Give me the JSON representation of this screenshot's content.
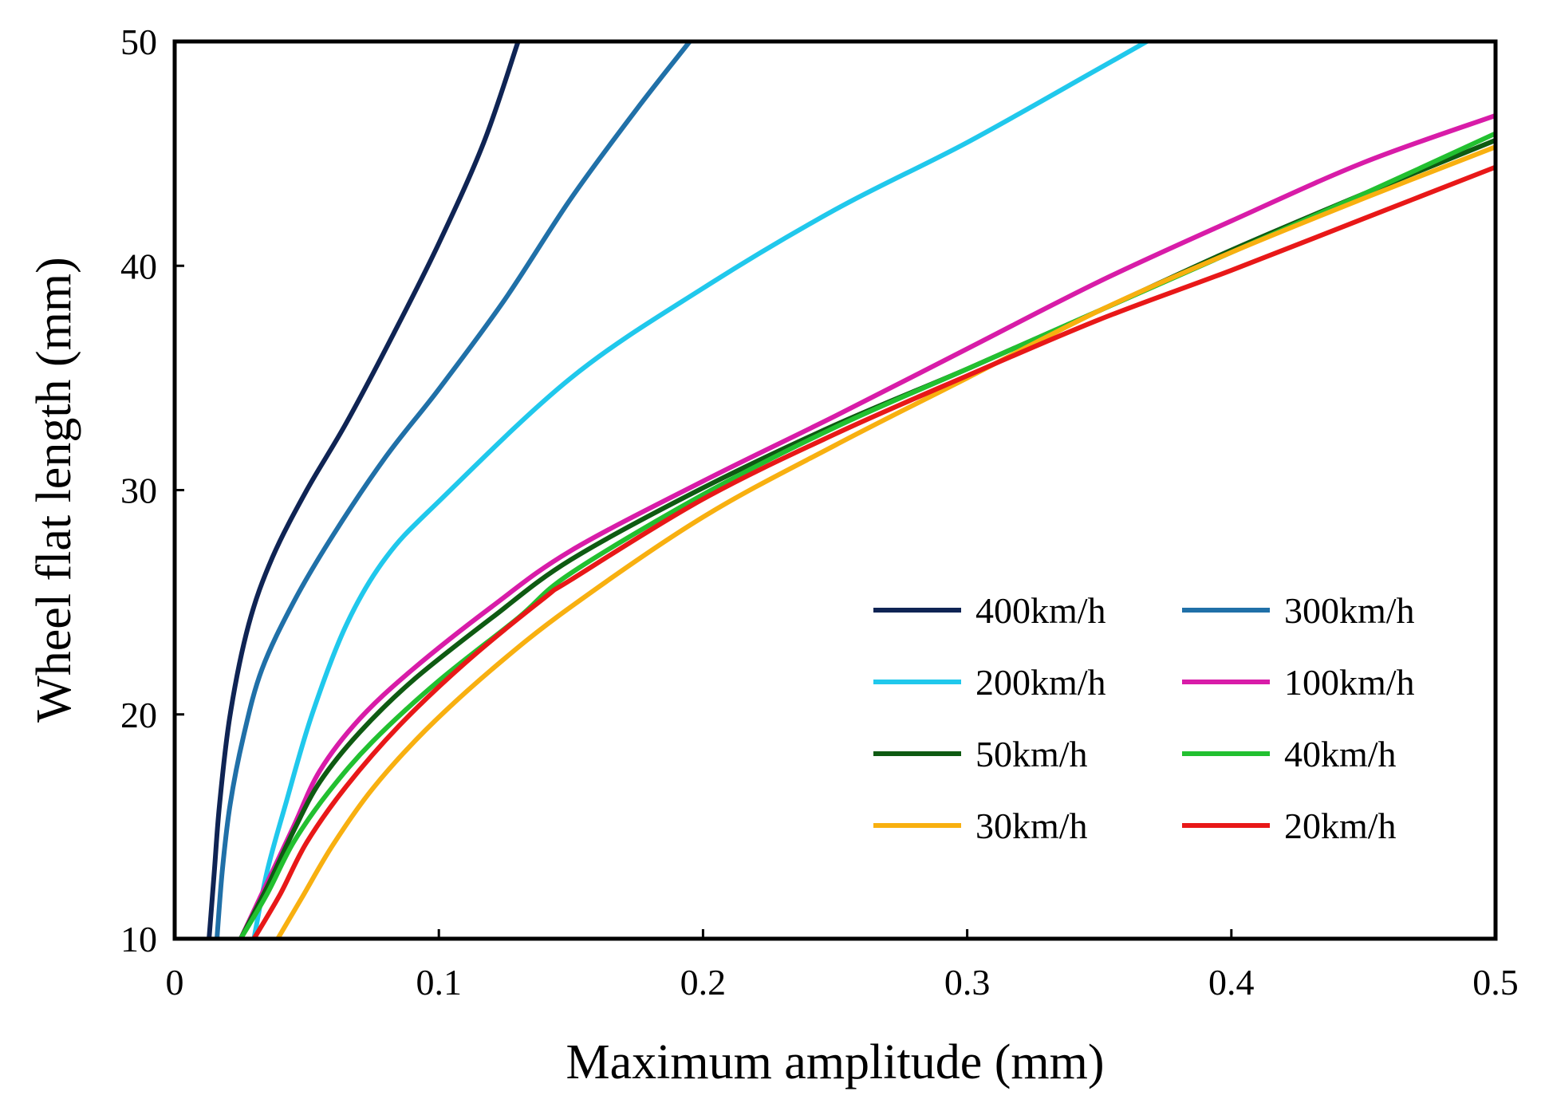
{
  "chart_data": {
    "type": "line",
    "title": "",
    "xlabel": "Maximum amplitude (mm)",
    "ylabel": "Wheel flat length (mm)",
    "xlim": [
      0,
      0.5
    ],
    "ylim": [
      10,
      50
    ],
    "xticks": [
      0,
      0.1,
      0.2,
      0.3,
      0.4,
      0.5
    ],
    "xtick_labels": [
      "0",
      "0.1",
      "0.2",
      "0.3",
      "0.4",
      "0.5"
    ],
    "yticks": [
      10,
      20,
      30,
      40,
      50
    ],
    "ytick_labels": [
      "10",
      "20",
      "30",
      "40",
      "50"
    ],
    "grid": false,
    "legend_position": "lower-right",
    "legend_columns": 2,
    "series": [
      {
        "name": "400km/h",
        "color": "#0f2454",
        "points": [
          [
            0.013,
            10
          ],
          [
            0.015,
            13
          ],
          [
            0.017,
            16
          ],
          [
            0.021,
            20
          ],
          [
            0.028,
            24
          ],
          [
            0.037,
            27
          ],
          [
            0.05,
            30
          ],
          [
            0.065,
            33
          ],
          [
            0.083,
            37
          ],
          [
            0.1,
            41
          ],
          [
            0.117,
            45.5
          ],
          [
            0.13,
            50
          ]
        ]
      },
      {
        "name": "300km/h",
        "color": "#2070a8",
        "points": [
          [
            0.016,
            10
          ],
          [
            0.018,
            13
          ],
          [
            0.021,
            16
          ],
          [
            0.026,
            19
          ],
          [
            0.033,
            22
          ],
          [
            0.045,
            25
          ],
          [
            0.06,
            28
          ],
          [
            0.08,
            31.5
          ],
          [
            0.1,
            34.5
          ],
          [
            0.125,
            38.5
          ],
          [
            0.15,
            43
          ],
          [
            0.175,
            47
          ],
          [
            0.195,
            50
          ]
        ]
      },
      {
        "name": "200km/h",
        "color": "#20c8ec",
        "points": [
          [
            0.03,
            10
          ],
          [
            0.035,
            13
          ],
          [
            0.042,
            16
          ],
          [
            0.052,
            20
          ],
          [
            0.065,
            24
          ],
          [
            0.08,
            27
          ],
          [
            0.1,
            29.5
          ],
          [
            0.15,
            35
          ],
          [
            0.2,
            39
          ],
          [
            0.25,
            42.5
          ],
          [
            0.3,
            45.5
          ],
          [
            0.35,
            48.8
          ],
          [
            0.368,
            50
          ]
        ]
      },
      {
        "name": "100km/h",
        "color": "#d81ca8",
        "points": [
          [
            0.025,
            10
          ],
          [
            0.035,
            12.5
          ],
          [
            0.045,
            15
          ],
          [
            0.055,
            17.5
          ],
          [
            0.07,
            19.8
          ],
          [
            0.09,
            22
          ],
          [
            0.12,
            24.8
          ],
          [
            0.15,
            27.3
          ],
          [
            0.2,
            30.4
          ],
          [
            0.25,
            33.3
          ],
          [
            0.3,
            36.3
          ],
          [
            0.35,
            39.3
          ],
          [
            0.4,
            42
          ],
          [
            0.45,
            44.6
          ],
          [
            0.5,
            46.7
          ]
        ]
      },
      {
        "name": "50km/h",
        "color": "#0e5a12",
        "points": [
          [
            0.025,
            10
          ],
          [
            0.035,
            12.3
          ],
          [
            0.045,
            14.8
          ],
          [
            0.055,
            17
          ],
          [
            0.07,
            19.2
          ],
          [
            0.09,
            21.5
          ],
          [
            0.12,
            24.3
          ],
          [
            0.15,
            26.9
          ],
          [
            0.2,
            30.1
          ],
          [
            0.25,
            32.9
          ],
          [
            0.3,
            35.4
          ],
          [
            0.35,
            38
          ],
          [
            0.4,
            40.7
          ],
          [
            0.45,
            43.2
          ],
          [
            0.5,
            45.6
          ]
        ]
      },
      {
        "name": "40km/h",
        "color": "#22c030",
        "points": [
          [
            0.025,
            10
          ],
          [
            0.035,
            12
          ],
          [
            0.045,
            14.3
          ],
          [
            0.058,
            16.5
          ],
          [
            0.075,
            18.8
          ],
          [
            0.1,
            21.5
          ],
          [
            0.13,
            24.3
          ],
          [
            0.15,
            26.3
          ],
          [
            0.2,
            29.8
          ],
          [
            0.25,
            32.8
          ],
          [
            0.3,
            35.4
          ],
          [
            0.35,
            38
          ],
          [
            0.4,
            40.6
          ],
          [
            0.45,
            43.2
          ],
          [
            0.5,
            45.9
          ]
        ]
      },
      {
        "name": "30km/h",
        "color": "#f8b010",
        "points": [
          [
            0.039,
            10
          ],
          [
            0.048,
            11.8
          ],
          [
            0.06,
            14.2
          ],
          [
            0.075,
            16.7
          ],
          [
            0.095,
            19.3
          ],
          [
            0.12,
            22
          ],
          [
            0.15,
            24.8
          ],
          [
            0.2,
            28.8
          ],
          [
            0.25,
            32
          ],
          [
            0.3,
            35
          ],
          [
            0.35,
            38
          ],
          [
            0.4,
            40.6
          ],
          [
            0.45,
            43
          ],
          [
            0.5,
            45.3
          ]
        ]
      },
      {
        "name": "20km/h",
        "color": "#e81818",
        "points": [
          [
            0.03,
            10
          ],
          [
            0.04,
            12
          ],
          [
            0.05,
            14.3
          ],
          [
            0.065,
            16.8
          ],
          [
            0.085,
            19.5
          ],
          [
            0.11,
            22.3
          ],
          [
            0.14,
            25.2
          ],
          [
            0.15,
            26
          ],
          [
            0.2,
            29.6
          ],
          [
            0.25,
            32.5
          ],
          [
            0.3,
            35.1
          ],
          [
            0.35,
            37.6
          ],
          [
            0.4,
            39.8
          ],
          [
            0.45,
            42.1
          ],
          [
            0.5,
            44.4
          ]
        ]
      }
    ]
  }
}
